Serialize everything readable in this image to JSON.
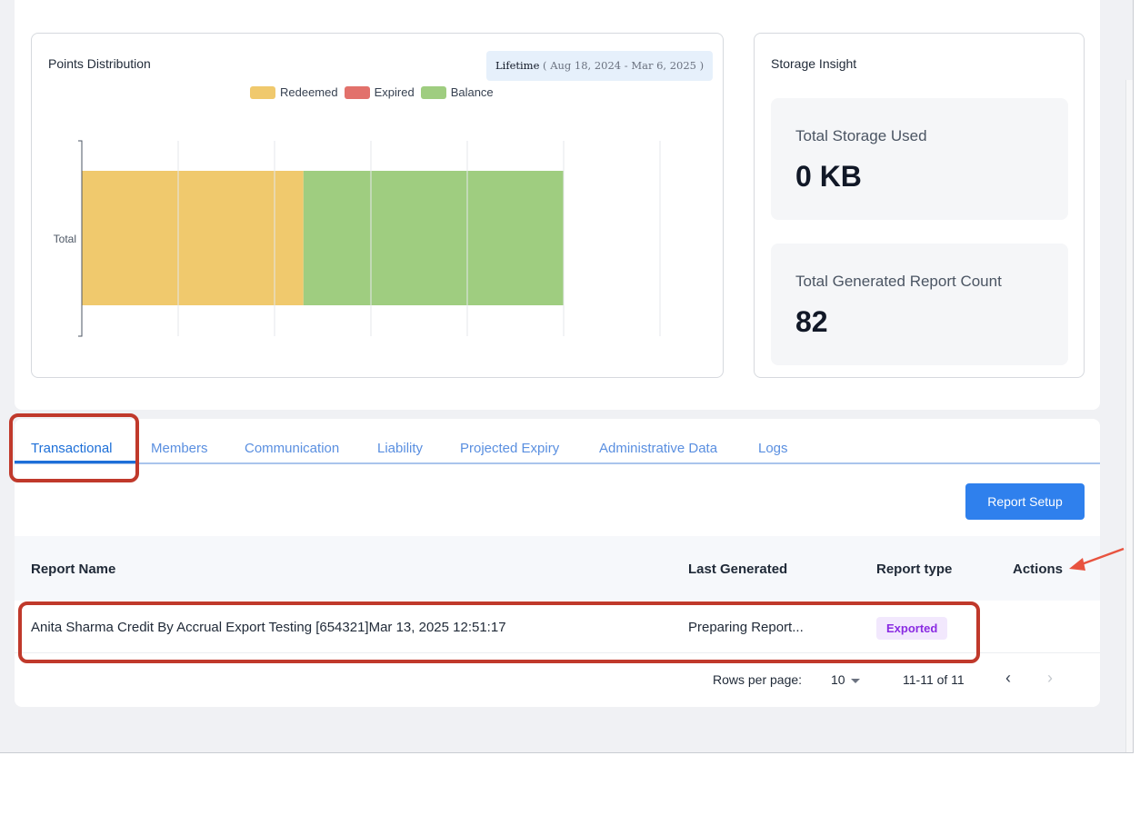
{
  "points_distribution": {
    "title": "Points Distribution",
    "lifetime_label": "Lifetime",
    "lifetime_range": "( Aug 18, 2024 - Mar 6, 2025 )",
    "legend": [
      {
        "label": "Redeemed",
        "color": "#f0c96d"
      },
      {
        "label": "Expired",
        "color": "#e2716b"
      },
      {
        "label": "Balance",
        "color": "#9fcd80"
      }
    ],
    "y_label": "Total"
  },
  "chart_data": {
    "type": "bar",
    "orientation": "horizontal",
    "stacked": true,
    "categories": [
      "Total"
    ],
    "series": [
      {
        "name": "Redeemed",
        "values": [
          46
        ],
        "color": "#f0c96d"
      },
      {
        "name": "Expired",
        "values": [
          0
        ],
        "color": "#e2716b"
      },
      {
        "name": "Balance",
        "values": [
          54
        ],
        "color": "#9fcd80"
      }
    ],
    "xlim": [
      0,
      120
    ],
    "grid": true,
    "legend_position": "top"
  },
  "storage": {
    "title": "Storage Insight",
    "used_label": "Total Storage Used",
    "used_value": "0 KB",
    "count_label": "Total Generated Report Count",
    "count_value": "82"
  },
  "tabs": [
    "Transactional",
    "Members",
    "Communication",
    "Liability",
    "Projected Expiry",
    "Administrative Data",
    "Logs"
  ],
  "report_setup_label": "Report Setup",
  "table": {
    "headers": {
      "name": "Report Name",
      "last_generated": "Last Generated",
      "type": "Report type",
      "actions": "Actions"
    },
    "rows": [
      {
        "name": "Anita Sharma Credit By Accrual Export Testing [654321]Mar 13, 2025 12:51:17",
        "last_generated": "Preparing Report...",
        "type": "Exported"
      }
    ]
  },
  "pagination": {
    "rows_label": "Rows per page:",
    "rows_value": "10",
    "range": "11-11 of 11"
  },
  "colors": {
    "primary": "#2f80ed",
    "annotation": "#c0392b"
  }
}
